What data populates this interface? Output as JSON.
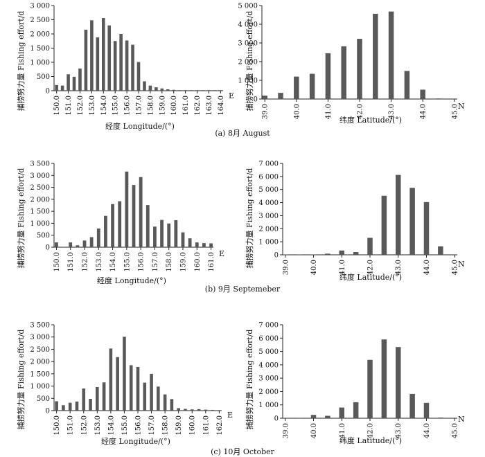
{
  "figure": {
    "ylabel": "捕捞努力量 Fishing effort/d",
    "lon_xlabel": "经度 Longitude/(°)",
    "lat_xlabel": "纬度 Latitude/(°)",
    "lon_unit": "E",
    "lat_unit": "N"
  },
  "captions": [
    "(a) 8月 August",
    "(b) 9月 Septemeber",
    "(c) 10月 October"
  ],
  "chart_data": [
    {
      "type": "bar",
      "panel": "a-longitude",
      "month": "August",
      "xlabel": "经度 Longitude/(°)",
      "ylabel": "捕捞努力量 Fishing effort/d",
      "x": [
        150.0,
        150.5,
        151.0,
        151.5,
        152.0,
        152.5,
        153.0,
        153.5,
        154.0,
        154.5,
        155.0,
        155.5,
        156.0,
        156.5,
        157.0,
        157.5,
        158.0,
        158.5,
        159.0,
        159.5,
        160.0,
        160.5,
        161.0,
        161.5,
        162.0,
        162.5,
        163.0,
        163.5,
        164.0
      ],
      "values": [
        200,
        180,
        580,
        490,
        780,
        2150,
        2480,
        1880,
        2560,
        2300,
        1750,
        2000,
        1770,
        1620,
        1010,
        330,
        180,
        120,
        80,
        50,
        30,
        20,
        20,
        20,
        20,
        20,
        20,
        20,
        20
      ],
      "xticks": [
        "150.0",
        "151.0",
        "152.0",
        "153.0",
        "154.0",
        "155.0",
        "156.0",
        "157.0",
        "158.0",
        "159.0",
        "160.0",
        "161.0",
        "162.0",
        "163.0",
        "164.0"
      ],
      "yticks": [
        "0",
        "500",
        "1 000",
        "1 500",
        "2 000",
        "2 500",
        "3 000"
      ],
      "ylim": [
        0,
        3000
      ]
    },
    {
      "type": "bar",
      "panel": "a-latitude",
      "month": "August",
      "xlabel": "纬度 Latitude/(°)",
      "ylabel": "捕捞努力量 Fishing effort/d",
      "x": [
        39.0,
        39.5,
        40.0,
        40.5,
        41.0,
        41.5,
        42.0,
        42.5,
        43.0,
        43.5,
        44.0,
        44.5
      ],
      "values": [
        180,
        330,
        1200,
        1350,
        2450,
        2820,
        3220,
        4560,
        4680,
        1500,
        500,
        30
      ],
      "xticks": [
        "39.0",
        "40.0",
        "41.0",
        "42.0",
        "43.0",
        "44.0",
        "45.0"
      ],
      "yticks": [
        "0",
        "1 000",
        "2 000",
        "3 000",
        "4 000",
        "5 000"
      ],
      "ylim": [
        0,
        5000
      ]
    },
    {
      "type": "bar",
      "panel": "b-longitude",
      "month": "September",
      "xlabel": "经度 Longitude/(°)",
      "ylabel": "捕捞努力量 Fishing effort/d",
      "x": [
        150.0,
        150.5,
        151.0,
        151.5,
        152.0,
        152.5,
        153.0,
        153.5,
        154.0,
        154.5,
        155.0,
        155.5,
        156.0,
        156.5,
        157.0,
        157.5,
        158.0,
        158.5,
        159.0,
        159.5,
        160.0,
        160.5,
        161.0
      ],
      "values": [
        200,
        0,
        200,
        80,
        280,
        420,
        780,
        1310,
        1800,
        1920,
        3160,
        2600,
        2930,
        1760,
        860,
        1140,
        990,
        1130,
        620,
        370,
        200,
        170,
        160
      ],
      "xticks": [
        "150.0",
        "151.0",
        "152.0",
        "153.0",
        "154.0",
        "155.0",
        "156.0",
        "157.0",
        "158.0",
        "159.0",
        "160.0",
        "161.0"
      ],
      "yticks": [
        "0",
        "500",
        "1 000",
        "1 500",
        "2 000",
        "2 500",
        "3 000",
        "3 500"
      ],
      "ylim": [
        0,
        3500
      ]
    },
    {
      "type": "bar",
      "panel": "b-latitude",
      "month": "September",
      "xlabel": "纬度 Latitude/(°)",
      "ylabel": "捕捞努力量 Fishing effort/d",
      "x": [
        39.0,
        39.5,
        40.0,
        40.5,
        41.0,
        41.5,
        42.0,
        42.5,
        43.0,
        43.5,
        44.0,
        44.5
      ],
      "values": [
        30,
        10,
        30,
        90,
        330,
        210,
        1300,
        4520,
        6120,
        5130,
        4040,
        650
      ],
      "xticks": [
        "39.0",
        "40.0",
        "41.0",
        "42.0",
        "43.0",
        "44.0",
        "45.0"
      ],
      "yticks": [
        "0",
        "1 000",
        "2 000",
        "3 000",
        "4 000",
        "5 000",
        "6 000",
        "7 000"
      ],
      "ylim": [
        0,
        7000
      ]
    },
    {
      "type": "bar",
      "panel": "c-longitude",
      "month": "October",
      "xlabel": "经度 Longitude/(°)",
      "ylabel": "捕捞努力量 Fishing effort/d",
      "x": [
        150.0,
        150.5,
        151.0,
        151.5,
        152.0,
        152.5,
        153.0,
        153.5,
        154.0,
        154.5,
        155.0,
        155.5,
        156.0,
        156.5,
        157.0,
        157.5,
        158.0,
        158.5,
        159.0,
        159.5,
        160.0,
        160.5,
        161.0,
        161.5,
        162.0
      ],
      "values": [
        380,
        220,
        320,
        370,
        900,
        480,
        960,
        1150,
        2530,
        2180,
        3010,
        1850,
        1780,
        1140,
        1500,
        980,
        660,
        470,
        100,
        70,
        50,
        60,
        40,
        30,
        20
      ],
      "xticks": [
        "150.0",
        "151.0",
        "152.0",
        "153.0",
        "154.0",
        "155.0",
        "156.0",
        "157.0",
        "158.0",
        "159.0",
        "160.0",
        "161.0",
        "162.0"
      ],
      "yticks": [
        "0",
        "500",
        "1 000",
        "1 500",
        "2 000",
        "2 500",
        "3 000",
        "3 500"
      ],
      "ylim": [
        0,
        3500
      ]
    },
    {
      "type": "bar",
      "panel": "c-latitude",
      "month": "October",
      "xlabel": "纬度 Latitude/(°)",
      "ylabel": "捕捞努力量 Fishing effort/d",
      "x": [
        39.0,
        39.5,
        40.0,
        40.5,
        41.0,
        41.5,
        42.0,
        42.5,
        43.0,
        43.5,
        44.0,
        44.5
      ],
      "values": [
        20,
        20,
        250,
        180,
        800,
        1200,
        4370,
        5900,
        5330,
        1820,
        1150,
        50
      ],
      "xticks": [
        "39.0",
        "40.0",
        "41.0",
        "42.0",
        "43.0",
        "44.0",
        "45.0"
      ],
      "yticks": [
        "0",
        "1 000",
        "2 000",
        "3 000",
        "4 000",
        "5 000",
        "6 000",
        "7 000"
      ],
      "ylim": [
        0,
        7000
      ]
    }
  ]
}
